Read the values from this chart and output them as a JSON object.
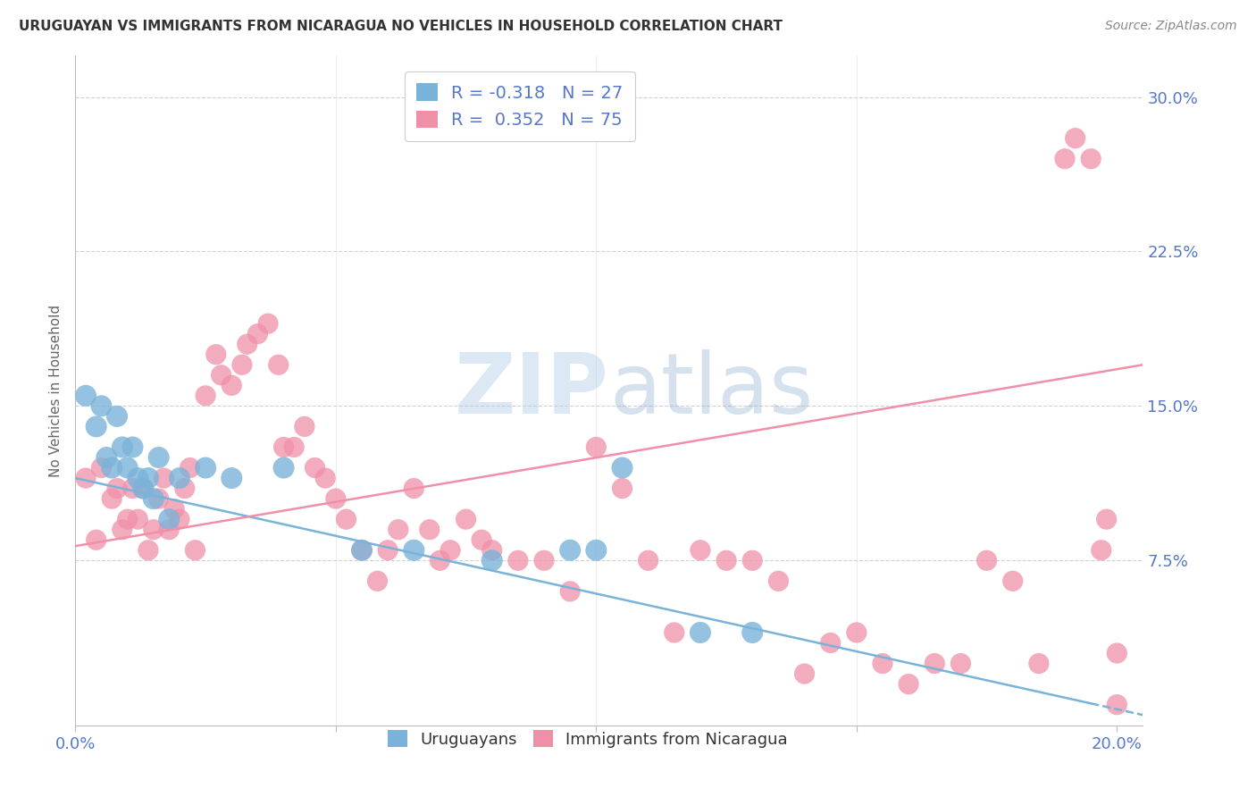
{
  "title": "URUGUAYAN VS IMMIGRANTS FROM NICARAGUA NO VEHICLES IN HOUSEHOLD CORRELATION CHART",
  "source": "Source: ZipAtlas.com",
  "ylabel": "No Vehicles in Household",
  "ytick_labels": [
    "30.0%",
    "22.5%",
    "15.0%",
    "7.5%"
  ],
  "ytick_values": [
    0.3,
    0.225,
    0.15,
    0.075
  ],
  "xlim": [
    0.0,
    0.205
  ],
  "ylim": [
    -0.005,
    0.32
  ],
  "series1_label": "Uruguayans",
  "series2_label": "Immigrants from Nicaragua",
  "series1_color": "#7ab3d9",
  "series2_color": "#f090a8",
  "series1_edge_color": "#4a88bb",
  "series2_edge_color": "#d06888",
  "series1_R": -0.318,
  "series1_N": 27,
  "series2_R": 0.352,
  "series2_N": 75,
  "watermark_zip": "ZIP",
  "watermark_atlas": "atlas",
  "background_color": "#ffffff",
  "grid_color": "#cccccc",
  "title_color": "#333333",
  "axis_label_color": "#5577cc",
  "series1_x": [
    0.002,
    0.004,
    0.005,
    0.006,
    0.007,
    0.008,
    0.009,
    0.01,
    0.011,
    0.012,
    0.013,
    0.014,
    0.015,
    0.016,
    0.018,
    0.02,
    0.025,
    0.03,
    0.04,
    0.055,
    0.065,
    0.08,
    0.095,
    0.1,
    0.105,
    0.12,
    0.13
  ],
  "series1_y": [
    0.155,
    0.14,
    0.15,
    0.125,
    0.12,
    0.145,
    0.13,
    0.12,
    0.13,
    0.115,
    0.11,
    0.115,
    0.105,
    0.125,
    0.095,
    0.115,
    0.12,
    0.115,
    0.12,
    0.08,
    0.08,
    0.075,
    0.08,
    0.08,
    0.12,
    0.04,
    0.04
  ],
  "series2_x": [
    0.002,
    0.004,
    0.005,
    0.007,
    0.008,
    0.009,
    0.01,
    0.011,
    0.012,
    0.013,
    0.014,
    0.015,
    0.016,
    0.017,
    0.018,
    0.019,
    0.02,
    0.021,
    0.022,
    0.023,
    0.025,
    0.027,
    0.028,
    0.03,
    0.032,
    0.033,
    0.035,
    0.037,
    0.039,
    0.04,
    0.042,
    0.044,
    0.046,
    0.048,
    0.05,
    0.052,
    0.055,
    0.058,
    0.06,
    0.062,
    0.065,
    0.068,
    0.07,
    0.072,
    0.075,
    0.078,
    0.08,
    0.085,
    0.09,
    0.095,
    0.1,
    0.105,
    0.11,
    0.115,
    0.12,
    0.125,
    0.13,
    0.135,
    0.14,
    0.145,
    0.15,
    0.155,
    0.16,
    0.165,
    0.17,
    0.175,
    0.18,
    0.185,
    0.19,
    0.192,
    0.195,
    0.197,
    0.198,
    0.2,
    0.2
  ],
  "series2_y": [
    0.115,
    0.085,
    0.12,
    0.105,
    0.11,
    0.09,
    0.095,
    0.11,
    0.095,
    0.11,
    0.08,
    0.09,
    0.105,
    0.115,
    0.09,
    0.1,
    0.095,
    0.11,
    0.12,
    0.08,
    0.155,
    0.175,
    0.165,
    0.16,
    0.17,
    0.18,
    0.185,
    0.19,
    0.17,
    0.13,
    0.13,
    0.14,
    0.12,
    0.115,
    0.105,
    0.095,
    0.08,
    0.065,
    0.08,
    0.09,
    0.11,
    0.09,
    0.075,
    0.08,
    0.095,
    0.085,
    0.08,
    0.075,
    0.075,
    0.06,
    0.13,
    0.11,
    0.075,
    0.04,
    0.08,
    0.075,
    0.075,
    0.065,
    0.02,
    0.035,
    0.04,
    0.025,
    0.015,
    0.025,
    0.025,
    0.075,
    0.065,
    0.025,
    0.27,
    0.28,
    0.27,
    0.08,
    0.095,
    0.03,
    0.005
  ],
  "line1_x0": 0.0,
  "line1_y0": 0.115,
  "line1_x1": 0.205,
  "line1_y1": 0.0,
  "line2_x0": 0.0,
  "line2_y0": 0.082,
  "line2_x1": 0.205,
  "line2_y1": 0.17
}
